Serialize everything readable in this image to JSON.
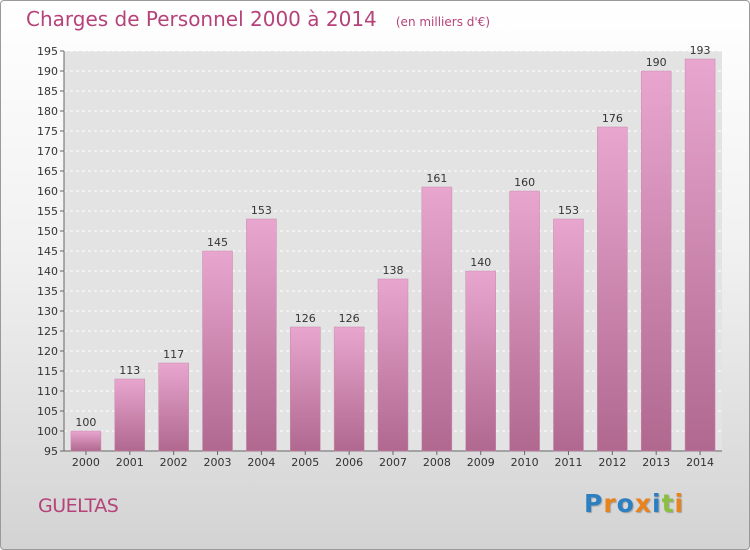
{
  "title": {
    "main": "Charges de Personnel 2000 à 2014",
    "unit": "(en milliers d'€)"
  },
  "commune": "GUELTAS",
  "logo": {
    "text": "Proxiti",
    "letters": [
      {
        "char": "P",
        "color": "#2c7fc1"
      },
      {
        "char": "r",
        "color": "#e8821c"
      },
      {
        "char": "o",
        "color": "#2c7fc1"
      },
      {
        "char": "x",
        "color": "#e8821c"
      },
      {
        "char": "i",
        "color": "#2c7fc1"
      },
      {
        "char": "t",
        "color": "#8cbf3f"
      },
      {
        "char": "i",
        "color": "#e8821c"
      }
    ]
  },
  "colors": {
    "bar_top": "#e8a6cf",
    "bar_bottom": "#b0688f",
    "title": "#b5437a",
    "grid": "#ffffff"
  },
  "chart_data": {
    "type": "bar",
    "title": "Charges de Personnel 2000 à 2014",
    "subtitle": "(en milliers d'€)",
    "categories": [
      "2000",
      "2001",
      "2002",
      "2003",
      "2004",
      "2005",
      "2006",
      "2007",
      "2008",
      "2009",
      "2010",
      "2011",
      "2012",
      "2013",
      "2014"
    ],
    "values": [
      100,
      113,
      117,
      145,
      153,
      126,
      126,
      138,
      161,
      140,
      160,
      153,
      176,
      190,
      193
    ],
    "ylim": [
      95,
      195
    ],
    "yticks": [
      95,
      100,
      105,
      110,
      115,
      120,
      125,
      130,
      135,
      140,
      145,
      150,
      155,
      160,
      165,
      170,
      175,
      180,
      185,
      190,
      195
    ],
    "grid": "horizontal, dashed",
    "data_labels": true
  }
}
